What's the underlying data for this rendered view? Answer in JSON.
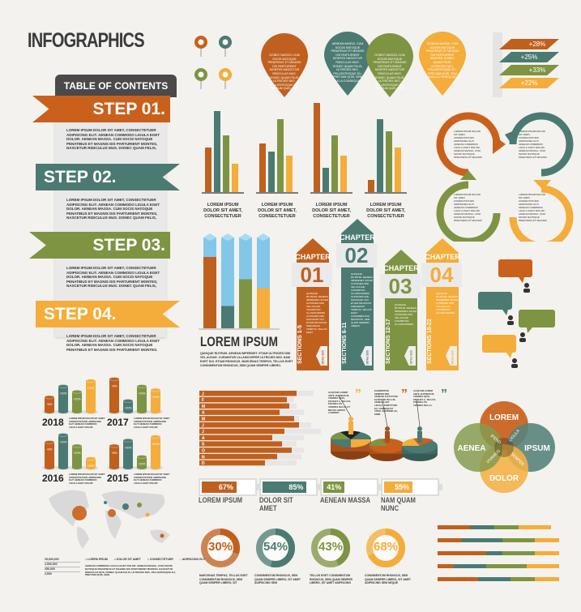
{
  "title": "INFOGRAPHICS",
  "colors": {
    "orange": "#c0601e",
    "teal": "#4b7a72",
    "green": "#7e9442",
    "yellow": "#f4ad3a",
    "dark": "#4a4a4a",
    "bg": "#f3f2ee"
  },
  "toc": {
    "heading": "TABLE OF CONTENTS",
    "steps": [
      {
        "label": "STEP 01.",
        "text": "LOREM IPSUM DOLOR SIT AMET, CONSECTETUER ADIPISCING ELIT. AENEAN COMMODO LIGULA EGET DOLOR. AENEAN MASSA. CUM SOCIS NATOQUE PENATIBUS ET MAGNIS DIS PARTURIENT MONTES, NASCETUR RIDICULUS MUS. DONEC QUAM FELIS,"
      },
      {
        "label": "STEP 02.",
        "text": "LOREM IPSUM DOLOR SIT AMET, CONSECTETUER ADIPISCING ELIT. AENEAN COMMODO LIGULA EGET DOLOR. AENEAN MASSA. CUM SOCIS NATOQUE PENATIBUS ET MAGNIS DIS PARTURIENT MONTES, NASCETUR RIDICULUS MUS. DONEC QUAM FELIS,"
      },
      {
        "label": "STEP 03.",
        "text": "LOREM IPSUM DOLOR SIT AMET, CONSECTETUER ADIPISCING ELIT. AENEAN COMMODO LIGULA EGET DOLOR. AENEAN MASSA. CUM SOCIS NATOQUE PENATIBUS ET MAGNIS DIS PARTURIENT MONTES, NASCETUR RIDICULUS MUS. DONEC QUAM FELIS,"
      },
      {
        "label": "STEP 04.",
        "text": "LOREM IPSUM DOLOR SIT AMET, CONSECTETUER ADIPISCING ELIT. AENEAN COMMODO LIGULA EGET DOLOR. AENEAN MASSA. CUM SOCIS NATOQUE PENATIBUS ET MAGNIS DIS PARTURIENT MONTES."
      }
    ]
  },
  "drops": [
    {
      "icon": "medal-icon",
      "text": "DONEC NASCEL CUM SOCIS NATOQUE PENATIBUS ET MAGNIS DIS PARTURIENT MONTES NASCETUR RIDICULUS MUS. DONEC QUAM FELIS, ULTRICIES NEC, PELLENTESQUE EU, PRETIUM QUIS, SEM."
    },
    {
      "icon": "weightlifter-icon",
      "text": "AENEAN MASSA. CUM SOCIIS NATOQUE PENATIBUS ET MAGNIS DIS PARTURIENT MONTES NASCETUR RIDICULUS MUS. DONEC QUAM FELIS, ULTRICIES NEC, PELLENTESQUE EU, PRETIUM QUIS, SEM NULLA CONSEQUAT."
    },
    {
      "icon": "lightning-icon",
      "text": "DONEC NASCEL CUM SOCIIS NATOQUE PENATIBUS ET MAGNIS DIS PARTURIENT MONTES NASCETUR RIDICULUS MUS. DONEC QUAM FELIS, ULTRICIES NEC, PELLENTESQUE EU, PRETIUM QUIS, SEM."
    },
    {
      "icon": "gauge-icon",
      "text": "AENEAN MASSA. CUM SOCIIS NATOQUE PENATIBUS ET MAGNIS DIS PARTURIENT MONTES. DONEC QUAM FELIS, ULTRICIES NEC, PELLENTESQUE EU, PRETIUM QUIS, SEM NULLA CONSEQUAT."
    }
  ],
  "layers": [
    "+28%",
    "+25%",
    "+33%",
    "+22%"
  ],
  "bar_label": "LOREM IPSUM DOLOR SIT AMET, CONSECTETUER",
  "chart_data": [
    {
      "type": "bar",
      "series_colors": [
        "orange",
        "teal",
        "green",
        "yellow"
      ],
      "groups": [
        [
          55,
          100,
          70,
          35
        ],
        [
          60,
          50,
          90,
          45
        ],
        [
          110,
          30,
          70,
          45
        ],
        [
          15,
          90,
          75,
          55
        ]
      ]
    },
    {
      "type": "bar",
      "note_colors": [
        "orange",
        "teal",
        "green",
        "yellow"
      ],
      "values": [
        80,
        25,
        55,
        45
      ],
      "max": 100
    },
    {
      "type": "bar",
      "orientation": "horizontal",
      "categories": [
        "J",
        "F",
        "M",
        "A",
        "M",
        "J",
        "J",
        "A",
        "S",
        "O",
        "N",
        "D"
      ],
      "values": [
        80,
        72,
        74,
        66,
        78,
        82,
        70,
        60,
        68,
        76,
        64,
        54
      ],
      "backgrounds": [
        94,
        78,
        80,
        86,
        82,
        92,
        100,
        86,
        80,
        86,
        84,
        80
      ]
    },
    {
      "type": "bar",
      "years": [
        {
          "year": "2018",
          "values": [
            40,
            70,
            55,
            85
          ],
          "labels": [
            "+8%",
            "+20%",
            "+20%",
            "+32%"
          ]
        },
        {
          "year": "2017",
          "values": [
            90,
            30,
            70,
            60
          ],
          "labels": [
            "+8%",
            "+20%",
            "+20%",
            "+32%"
          ]
        },
        {
          "year": "2016",
          "values": [
            70,
            90,
            60,
            25
          ],
          "labels": [
            "+8%",
            "+20%",
            "+20%",
            "+32%"
          ]
        },
        {
          "year": "2015",
          "values": [
            60,
            75,
            30,
            85
          ],
          "labels": [
            "+8%",
            "+20%",
            "+20%",
            "+32%"
          ]
        }
      ]
    },
    {
      "type": "bar",
      "orientation": "horizontal",
      "stacked": true,
      "rows": [
        [
          40,
          30,
          30,
          40
        ],
        [
          30,
          50,
          40,
          30
        ],
        [
          60,
          20,
          40,
          30
        ],
        [
          20,
          40,
          50,
          40
        ],
        [
          50,
          40,
          30,
          30
        ]
      ]
    }
  ],
  "cylinder_caption": "LOREM IPSUM DOLOR SIT AMET CONSECTETUER ADIPISCING ELIT AENEAN COMMODO LIGULA EGET DOLOR",
  "lorem_block": {
    "heading": "LOREM IPSUM",
    "text": "QUISQUE RUTRUM. AENEAN IMPERDIET. ETIAM ULTRICIES NISI VEL AUGUE. CURABITUR ULLAMCORPER ULTRICIES NISI. NAM EGET DUI. ETIAM RHONCUS. MAECENAS TEMPUS, TELLUS EGET CONDIMENTUM RHONCUS, SEM QUAM SEMPER LIBERO."
  },
  "chapters": [
    {
      "word": "CHAPTER",
      "num": "01",
      "sections": "SECTIONS 1-5",
      "page": "SEE PAGE 1",
      "text": "QUISQUE RUTRUM. AENEAN IMPERDIET. ETIAM ULTRICIES NISI VEL AUGUE. CURABITUR ULLAMCORPER ULTRICIES NISI. NAM EGET DUI. ETIAM RHONCUS. MAECENAS TEMPUS, TELLUS EGET"
    },
    {
      "word": "CHAPTER",
      "num": "02",
      "sections": "SECTIONS 6-11",
      "page": "SEE PAGE 6",
      "text": "QUISQUE RUTRUM. AENEAN IMPERDIET. ETIAM ULTRICIES NISI VEL AUGUE. CURABITUR ULLAMCORPER ULTRICIES NISI. NAM EGET DUI. ETIAM RHONCUS. MAECENAS TEMPUS, TELLUS EGET CONDIMENTUM RHONCUS, SEM QUAM SEMPER LIBERO."
    },
    {
      "word": "CHAPTER",
      "num": "03",
      "sections": "SECTIONS 12-17",
      "page": "SEE PAGE 12",
      "text": "QUISQUE RUTRUM. AENEAN IMPERDIET. ETIAM ULTRICIES NISI VEL AUGUE. CURABITUR ULLAMCORPER."
    },
    {
      "word": "CHAPTER",
      "num": "04",
      "sections": "SECTIONS 18-22",
      "page": "SEE PAGE 18",
      "text": "QUISQUE RUTRUM. AENEAN IMPERDIET. ETIAM ULTRICIES NISI VEL AUGUE. CURABITUR ULLAMCORPER."
    }
  ],
  "cycle_text": "LOREM IPSUM DOLOR SIT AMET, CONSECTETUER ADIPISCING ELIT. AENEAN COMMODO LIGULA EGET DOLOR. AENEAN MASSA. CUM SOCIIS NATOQUE PENATIBUS ET MAGNIS",
  "pie_quotes": [
    "ALIQUAM LOREM ANTE, DAPIBUS IN, VIVERRA QUIS, FEUGIAT A, TELLUS. PHASELLUS VIVERRA NULLA UT METUS VARIUS LAOREET.",
    "ELEMENTUM SEMPER NISI. AENEAN VULPUTATE ELEIFEND TELLUS. AENEAN LEO LIGULA, PORTTITOR EU, CONSEQUAT VITAE, ELEIFEND AC, ENIM.",
    "ALIQUAM LOREM ANTE, DAPIBUS IN, VIVERRA QUIS, FEUGIAT A, TELLUS. PHASELLUS VIVERRA NULLA."
  ],
  "venn": {
    "circles": [
      "LOREM",
      "IPSUM",
      "DOLOR",
      "AENEA"
    ],
    "overlaps": [
      "IFEND",
      "LIGULA",
      "SEMPER",
      "VIVAMUS"
    ]
  },
  "batteries": [
    {
      "value": 67,
      "label": "67%",
      "name": "LOREM IPSUM",
      "color": "orange"
    },
    {
      "value": 85,
      "label": "85%",
      "name": "DOLOR SIT AMET",
      "color": "teal"
    },
    {
      "value": 41,
      "label": "41%",
      "name": "AENEAN MASSA",
      "color": "green"
    },
    {
      "value": 55,
      "label": "55%",
      "name": "NAM QUAM NUNC",
      "color": "yellow"
    }
  ],
  "map": {
    "scale": [
      "25,000,000",
      "2,500,000",
      "250,000",
      "2,500"
    ],
    "legend": [
      "LOREM IPSUM",
      "DOLOR SIT AMET",
      "CONSECTETUER",
      "ADIPISCING ELIT"
    ],
    "text": "AENEAN COMMODO LIGULA EGET DOLOR. AENEAN MASSA. CUM SOCIIS NATOQUE PENATIBUS ET MAGNIS DIS PARTURIENT MONTES, NASCETUR RIDICULUS MUS. DONEC QUAM FELIS, ULTRICIES NEC, PELLENTESQUE EU, PRETIUM QUIS, SEM."
  },
  "donuts": [
    {
      "value": 30,
      "label": "30%",
      "color": "orange",
      "text": "MAECENAS TEMPUS, TELLUS EGET CONDIMENTUM RHONCUS, SEM QUAM SEMPER LIBERO, SIT"
    },
    {
      "value": 54,
      "label": "54%",
      "color": "teal",
      "text": "CONDIMENTUM RHONCUS, SEM QUAM SEMPER LIBERO, SIT AMET ADIPISCING SEM"
    },
    {
      "value": 43,
      "label": "43%",
      "color": "green",
      "text": "TELLUS EGET CONDIMENTUM RHONCUS, SEM QUAM SEMPER LIBERO, SIT AMET ADIPISCING"
    },
    {
      "value": 68,
      "label": "68%",
      "color": "yellow",
      "text": "CONDIMENTUM RHONCUS, SEM QUAM SEMPER LIBERO, SIT AMET ADIPISCING SEM NEQUE"
    }
  ]
}
